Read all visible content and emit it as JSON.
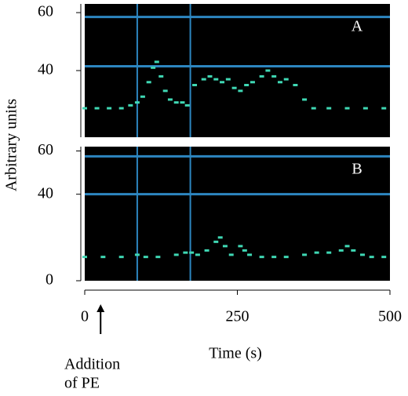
{
  "chart_data": {
    "type": "scatter",
    "ylabel": "Arbitrary units",
    "xlabel": "Time (s)",
    "xlim": [
      0,
      500
    ],
    "xticks": [
      0,
      250,
      500
    ],
    "annotation": {
      "lines": [
        "Addition",
        "of PE"
      ],
      "x": 26
    },
    "panels": [
      {
        "label": "A",
        "ylim": [
          17,
          63
        ],
        "yticks": [
          40,
          60
        ],
        "hlines": [
          58.5,
          41.5
        ],
        "vlines": [
          86,
          173
        ],
        "line_color": "#2d86c0",
        "series": [
          {
            "color": "#3fd8b4",
            "x": [
              0,
              20,
              40,
              60,
              75,
              86,
              95,
              105,
              112,
              118,
              125,
              132,
              140,
              150,
              160,
              168,
              180,
              195,
              205,
              215,
              225,
              235,
              245,
              255,
              265,
              275,
              290,
              300,
              310,
              320,
              330,
              345,
              360,
              375,
              400,
              430,
              460,
              490
            ],
            "values": [
              27,
              27,
              27,
              27,
              28,
              29,
              31,
              36,
              41,
              43,
              38,
              33,
              30,
              29,
              29,
              28,
              35,
              37,
              38,
              37,
              36,
              37,
              34,
              33,
              35,
              36,
              38,
              40,
              38,
              36,
              37,
              35,
              30,
              27,
              27,
              27,
              27,
              27
            ]
          }
        ]
      },
      {
        "label": "B",
        "ylim": [
          0,
          62
        ],
        "yticks": [
          0,
          40,
          60
        ],
        "hlines": [
          57.5,
          40
        ],
        "vlines": [
          86,
          173
        ],
        "line_color": "#2d86c0",
        "series": [
          {
            "color": "#3fd8b4",
            "x": [
              0,
              30,
              60,
              86,
              100,
              120,
              150,
              165,
              175,
              185,
              200,
              215,
              222,
              230,
              240,
              255,
              262,
              270,
              290,
              310,
              330,
              360,
              380,
              400,
              420,
              430,
              440,
              455,
              470,
              490
            ],
            "values": [
              11,
              11,
              11,
              12,
              11,
              11,
              12,
              13,
              13,
              12,
              14,
              18,
              20,
              16,
              12,
              16,
              14,
              12,
              11,
              11,
              11,
              12,
              13,
              13,
              14,
              16,
              14,
              12,
              11,
              11
            ]
          }
        ]
      }
    ]
  }
}
